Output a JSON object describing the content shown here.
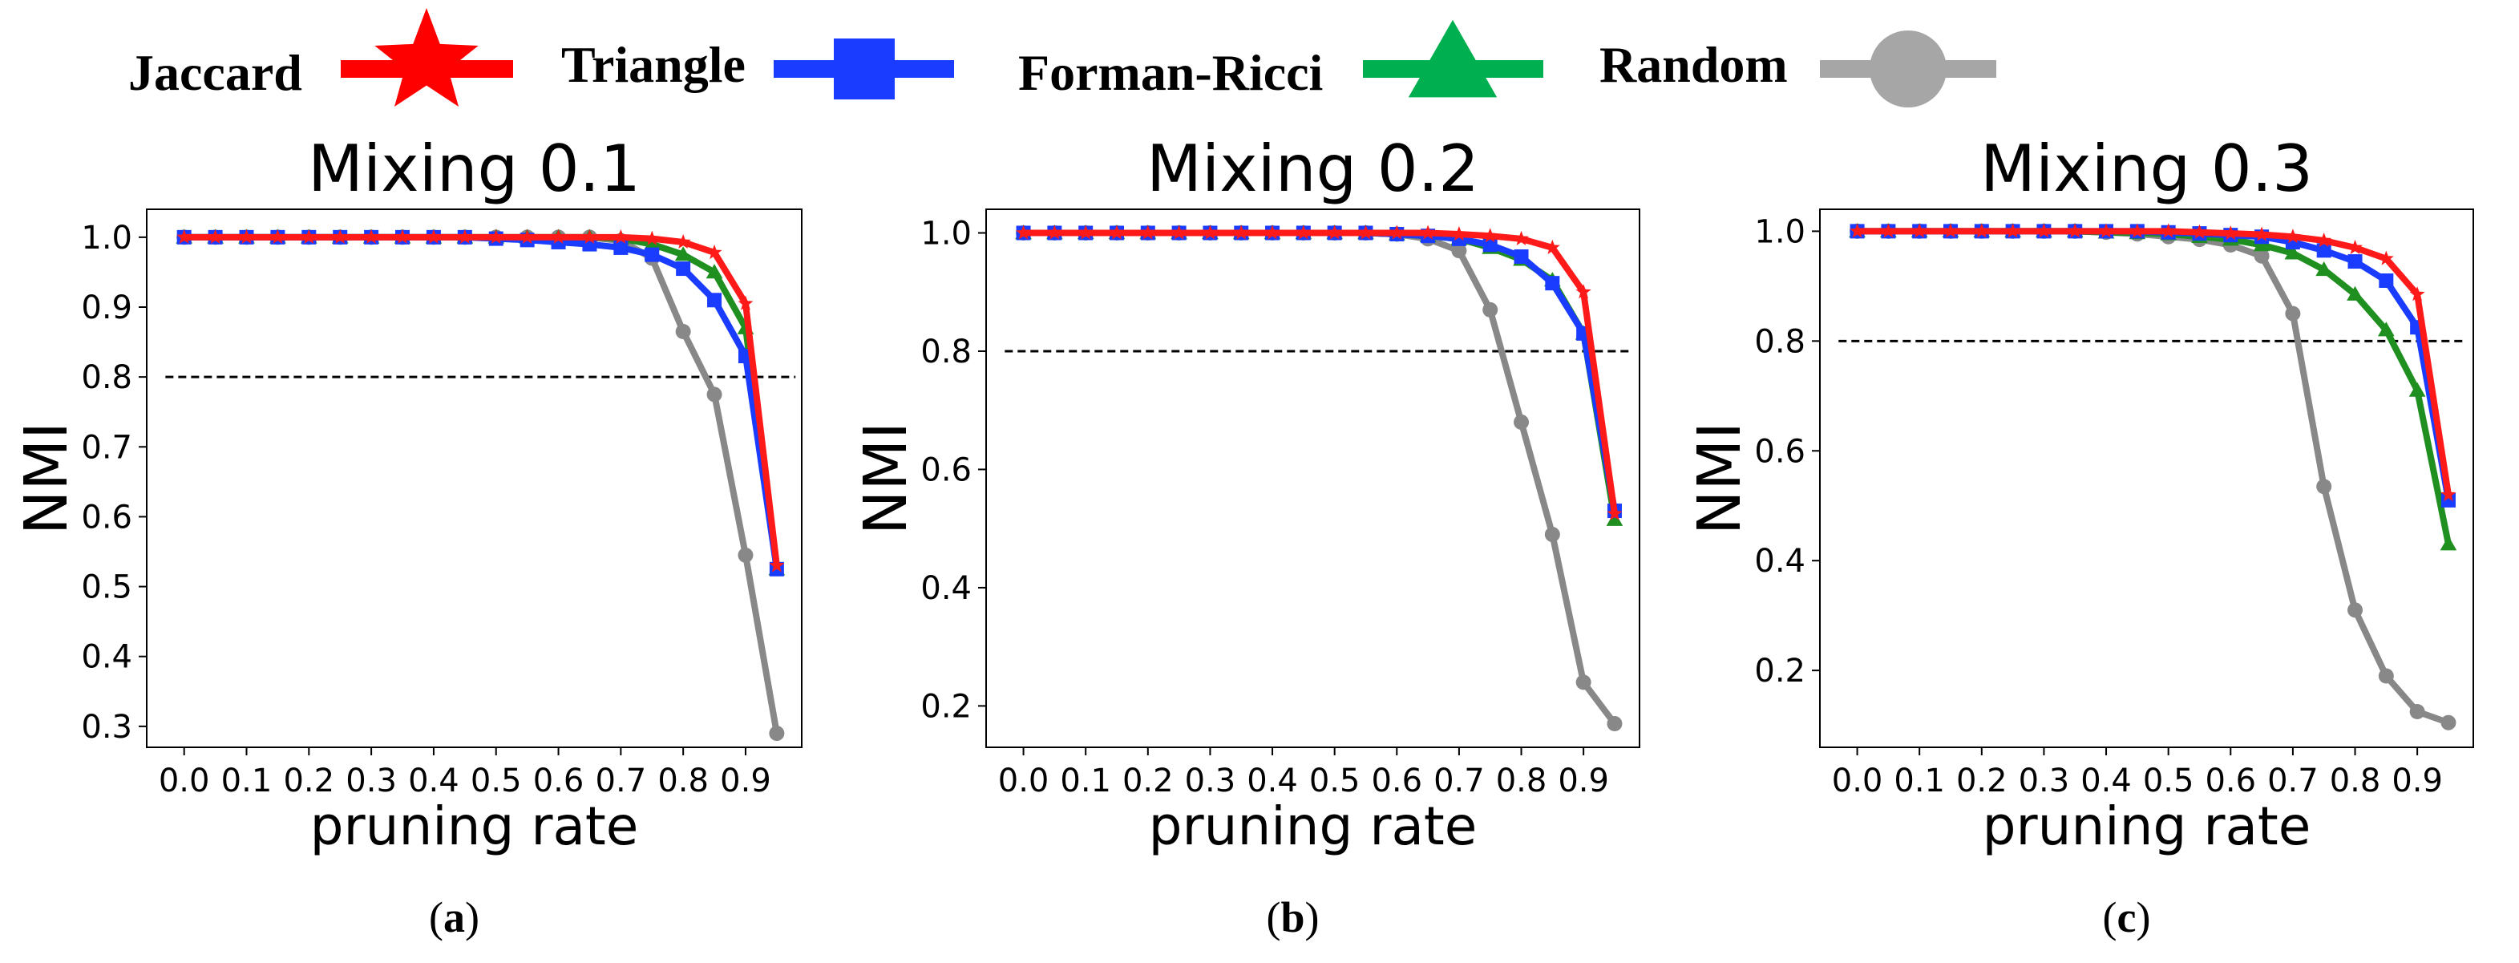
{
  "legend": [
    {
      "label": "Jaccard",
      "color": "#ff0000",
      "marker": "star"
    },
    {
      "label": "Triangle",
      "color": "#1a3cff",
      "marker": "square"
    },
    {
      "label": "Forman-Ricci",
      "color": "#00b050",
      "marker": "triangle"
    },
    {
      "label": "Random",
      "color": "#a6a6a6",
      "marker": "circle"
    }
  ],
  "chart_data": [
    {
      "type": "line",
      "title": "Mixing 0.1",
      "subcaption": {
        "open": "(",
        "letter": "a",
        "close": ")"
      },
      "xlabel": "pruning rate",
      "ylabel": "NMI",
      "xlim": [
        -0.06,
        0.99
      ],
      "ylim": [
        0.27,
        1.04
      ],
      "x_ticks": [
        0.0,
        0.1,
        0.2,
        0.3,
        0.4,
        0.5,
        0.6,
        0.7,
        0.8,
        0.9
      ],
      "x_tick_labels": [
        "0.0",
        "0.1",
        "0.2",
        "0.3",
        "0.4",
        "0.5",
        "0.6",
        "0.7",
        "0.8",
        "0.9"
      ],
      "y_ticks": [
        0.3,
        0.4,
        0.5,
        0.6,
        0.7,
        0.8,
        0.9,
        1.0
      ],
      "y_tick_labels": [
        "0.3",
        "0.4",
        "0.5",
        "0.6",
        "0.7",
        "0.8",
        "0.9",
        "1.0"
      ],
      "threshold": 0.8,
      "x": [
        0.0,
        0.05,
        0.1,
        0.15,
        0.2,
        0.25,
        0.3,
        0.35,
        0.4,
        0.45,
        0.5,
        0.55,
        0.6,
        0.65,
        0.7,
        0.75,
        0.8,
        0.85,
        0.9,
        0.95
      ],
      "series": [
        {
          "name": "Random",
          "values": [
            1.0,
            1.0,
            1.0,
            1.0,
            1.0,
            1.0,
            1.0,
            1.0,
            1.0,
            1.0,
            1.0,
            1.0,
            1.0,
            1.0,
            0.995,
            0.97,
            0.865,
            0.775,
            0.545,
            0.29
          ]
        },
        {
          "name": "Forman-Ricci",
          "values": [
            1.0,
            1.0,
            1.0,
            1.0,
            1.0,
            1.0,
            1.0,
            1.0,
            1.0,
            1.0,
            1.0,
            1.0,
            1.0,
            1.0,
            0.998,
            0.99,
            0.975,
            0.95,
            0.87,
            0.525
          ]
        },
        {
          "name": "Triangle",
          "values": [
            1.0,
            1.0,
            1.0,
            1.0,
            1.0,
            1.0,
            1.0,
            1.0,
            1.0,
            1.0,
            0.998,
            0.996,
            0.993,
            0.99,
            0.985,
            0.975,
            0.955,
            0.91,
            0.83,
            0.525
          ]
        },
        {
          "name": "Jaccard",
          "values": [
            1.0,
            1.0,
            1.0,
            1.0,
            1.0,
            1.0,
            1.0,
            1.0,
            1.0,
            1.0,
            1.0,
            1.0,
            1.0,
            1.0,
            1.0,
            0.998,
            0.993,
            0.978,
            0.905,
            0.53
          ]
        }
      ]
    },
    {
      "type": "line",
      "title": "Mixing 0.2",
      "subcaption": {
        "open": "(",
        "letter": "b",
        "close": ")"
      },
      "xlabel": "pruning rate",
      "ylabel": "NMI",
      "xlim": [
        -0.06,
        0.99
      ],
      "ylim": [
        0.13,
        1.04
      ],
      "x_ticks": [
        0.0,
        0.1,
        0.2,
        0.3,
        0.4,
        0.5,
        0.6,
        0.7,
        0.8,
        0.9
      ],
      "x_tick_labels": [
        "0.0",
        "0.1",
        "0.2",
        "0.3",
        "0.4",
        "0.5",
        "0.6",
        "0.7",
        "0.8",
        "0.9"
      ],
      "y_ticks": [
        0.2,
        0.4,
        0.6,
        0.8,
        1.0
      ],
      "y_tick_labels": [
        "0.2",
        "0.4",
        "0.6",
        "0.8",
        "1.0"
      ],
      "threshold": 0.8,
      "x": [
        0.0,
        0.05,
        0.1,
        0.15,
        0.2,
        0.25,
        0.3,
        0.35,
        0.4,
        0.45,
        0.5,
        0.55,
        0.6,
        0.65,
        0.7,
        0.75,
        0.8,
        0.85,
        0.9,
        0.95
      ],
      "series": [
        {
          "name": "Random",
          "values": [
            1.0,
            1.0,
            1.0,
            1.0,
            1.0,
            1.0,
            1.0,
            1.0,
            1.0,
            1.0,
            1.0,
            1.0,
            0.998,
            0.99,
            0.97,
            0.87,
            0.68,
            0.49,
            0.24,
            0.17
          ]
        },
        {
          "name": "Forman-Ricci",
          "values": [
            1.0,
            1.0,
            1.0,
            1.0,
            1.0,
            1.0,
            1.0,
            1.0,
            1.0,
            1.0,
            1.0,
            1.0,
            0.998,
            0.995,
            0.99,
            0.975,
            0.955,
            0.92,
            0.83,
            0.515
          ]
        },
        {
          "name": "Triangle",
          "values": [
            1.0,
            1.0,
            1.0,
            1.0,
            1.0,
            1.0,
            1.0,
            1.0,
            1.0,
            1.0,
            1.0,
            1.0,
            0.998,
            0.995,
            0.99,
            0.98,
            0.96,
            0.915,
            0.83,
            0.53
          ]
        },
        {
          "name": "Jaccard",
          "values": [
            1.0,
            1.0,
            1.0,
            1.0,
            1.0,
            1.0,
            1.0,
            1.0,
            1.0,
            1.0,
            1.0,
            1.0,
            1.0,
            1.0,
            0.998,
            0.995,
            0.99,
            0.975,
            0.9,
            0.525
          ]
        }
      ]
    },
    {
      "type": "line",
      "title": "Mixing 0.3",
      "subcaption": {
        "open": "(",
        "letter": "c",
        "close": ")"
      },
      "xlabel": "pruning rate",
      "ylabel": "NMI",
      "xlim": [
        -0.06,
        0.99
      ],
      "ylim": [
        0.06,
        1.04
      ],
      "x_ticks": [
        0.0,
        0.1,
        0.2,
        0.3,
        0.4,
        0.5,
        0.6,
        0.7,
        0.8,
        0.9
      ],
      "x_tick_labels": [
        "0.0",
        "0.1",
        "0.2",
        "0.3",
        "0.4",
        "0.5",
        "0.6",
        "0.7",
        "0.8",
        "0.9"
      ],
      "y_ticks": [
        0.2,
        0.4,
        0.6,
        0.8,
        1.0
      ],
      "y_tick_labels": [
        "0.2",
        "0.4",
        "0.6",
        "0.8",
        "1.0"
      ],
      "threshold": 0.8,
      "x": [
        0.0,
        0.05,
        0.1,
        0.15,
        0.2,
        0.25,
        0.3,
        0.35,
        0.4,
        0.45,
        0.5,
        0.55,
        0.6,
        0.65,
        0.7,
        0.75,
        0.8,
        0.85,
        0.9,
        0.95
      ],
      "series": [
        {
          "name": "Random",
          "values": [
            1.0,
            1.0,
            1.0,
            1.0,
            1.0,
            1.0,
            1.0,
            1.0,
            0.998,
            0.995,
            0.99,
            0.985,
            0.975,
            0.955,
            0.85,
            0.535,
            0.31,
            0.19,
            0.125,
            0.105
          ]
        },
        {
          "name": "Forman-Ricci",
          "values": [
            1.0,
            1.0,
            1.0,
            1.0,
            1.0,
            1.0,
            1.0,
            1.0,
            0.998,
            0.997,
            0.995,
            0.99,
            0.985,
            0.975,
            0.96,
            0.93,
            0.885,
            0.82,
            0.71,
            0.43
          ]
        },
        {
          "name": "Triangle",
          "values": [
            1.0,
            1.0,
            1.0,
            1.0,
            1.0,
            1.0,
            1.0,
            1.0,
            1.0,
            1.0,
            0.998,
            0.996,
            0.993,
            0.99,
            0.98,
            0.965,
            0.945,
            0.91,
            0.825,
            0.51
          ]
        },
        {
          "name": "Jaccard",
          "values": [
            1.0,
            1.0,
            1.0,
            1.0,
            1.0,
            1.0,
            1.0,
            1.0,
            1.0,
            1.0,
            1.0,
            0.998,
            0.996,
            0.994,
            0.99,
            0.983,
            0.97,
            0.95,
            0.885,
            0.52
          ]
        }
      ]
    }
  ]
}
